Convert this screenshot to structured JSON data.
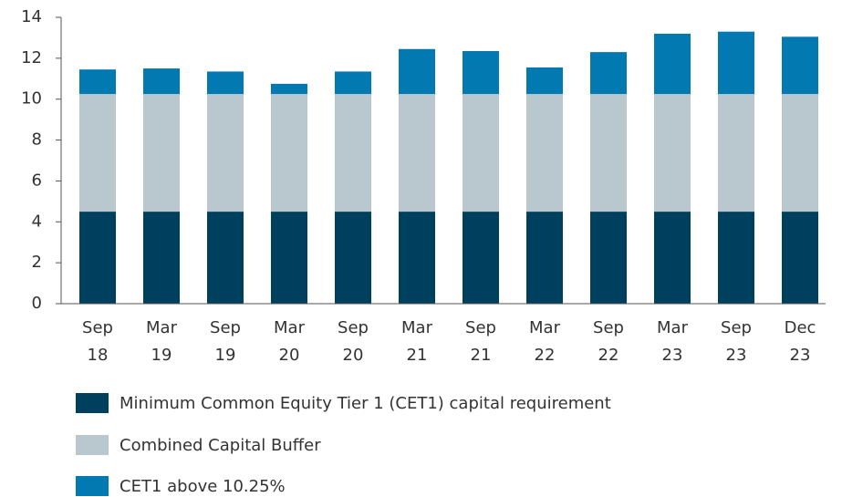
{
  "chart_data": {
    "type": "bar",
    "stacked": true,
    "categories": [
      "Sep 18",
      "Mar 19",
      "Sep 19",
      "Mar 20",
      "Sep 20",
      "Mar 21",
      "Sep 21",
      "Mar 22",
      "Sep 22",
      "Mar 23",
      "Sep 23",
      "Dec 23"
    ],
    "series": [
      {
        "name": "Minimum Common Equity Tier 1 (CET1) capital requirement",
        "color": "#00405f",
        "values": [
          4.5,
          4.5,
          4.5,
          4.5,
          4.5,
          4.5,
          4.5,
          4.5,
          4.5,
          4.5,
          4.5,
          4.5
        ]
      },
      {
        "name": "Combined Capital Buffer",
        "color": "#b9c8ce",
        "values": [
          5.75,
          5.75,
          5.75,
          5.75,
          5.75,
          5.75,
          5.75,
          5.75,
          5.75,
          5.75,
          5.75,
          5.75
        ]
      },
      {
        "name": "CET1 above 10.25%",
        "color": "#0379b2",
        "values": [
          1.2,
          1.25,
          1.1,
          0.5,
          1.1,
          2.2,
          2.1,
          1.3,
          2.05,
          2.95,
          3.05,
          2.8
        ]
      }
    ],
    "ylim": [
      0,
      14
    ],
    "yticks": [
      0,
      2,
      4,
      6,
      8,
      10,
      12,
      14
    ],
    "grid": false
  }
}
